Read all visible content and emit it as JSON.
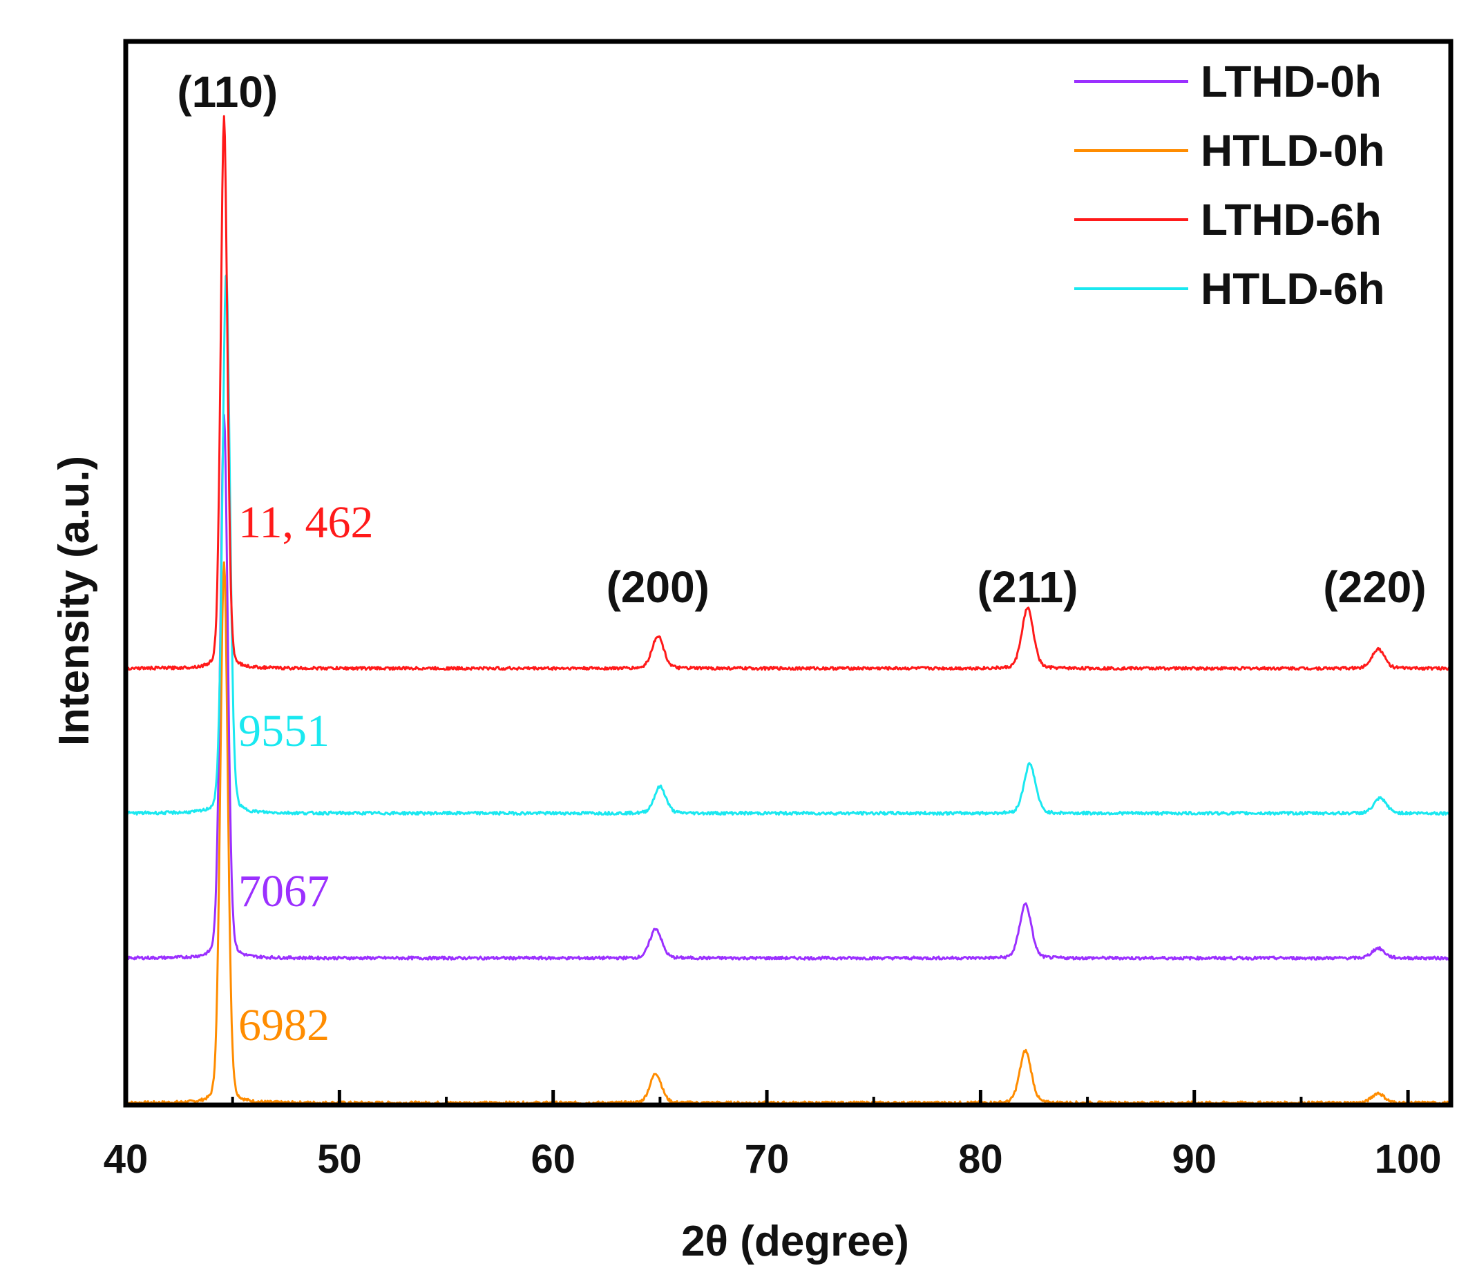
{
  "chart_data": {
    "type": "line",
    "title": "",
    "xlabel": "2θ (degree)",
    "ylabel": "Intensity (a.u.)",
    "xlim": [
      40,
      102
    ],
    "ylim": [
      0,
      10
    ],
    "x_ticks": [
      40,
      50,
      60,
      70,
      80,
      90,
      100
    ],
    "x_tick_labels": [
      "40",
      "50",
      "60",
      "70",
      "80",
      "90",
      "100"
    ],
    "legend_position": "top-right",
    "legend": [
      "LTHD-0h",
      "HTLD-0h",
      "LTHD-6h",
      "HTLD-6h"
    ],
    "peak_positions": [
      44.6,
      64.9,
      82.2,
      98.6
    ],
    "peak_labels": [
      "(110)",
      "(200)",
      "(211)",
      "(220)"
    ],
    "series": [
      {
        "name": "LTHD-0h",
        "color": "#9b30ff",
        "baseline": 1.47,
        "peaks": [
          {
            "x": 44.6,
            "height": 5.5,
            "width": 0.18
          },
          {
            "x": 64.8,
            "height": 0.3,
            "width": 0.28
          },
          {
            "x": 82.1,
            "height": 0.55,
            "width": 0.28
          },
          {
            "x": 98.6,
            "height": 0.1,
            "width": 0.3
          }
        ],
        "intensity_label": "7067"
      },
      {
        "name": "HTLD-0h",
        "color": "#ff8c00",
        "baseline": 0.0,
        "peaks": [
          {
            "x": 44.6,
            "height": 5.5,
            "width": 0.18
          },
          {
            "x": 64.8,
            "height": 0.3,
            "width": 0.28
          },
          {
            "x": 82.1,
            "height": 0.53,
            "width": 0.28
          },
          {
            "x": 98.6,
            "height": 0.1,
            "width": 0.3
          }
        ],
        "intensity_label": "6982"
      },
      {
        "name": "LTHD-6h",
        "color": "#ff1a1a",
        "baseline": 4.41,
        "peaks": [
          {
            "x": 44.6,
            "height": 5.59,
            "width": 0.16
          },
          {
            "x": 64.9,
            "height": 0.33,
            "width": 0.28
          },
          {
            "x": 82.2,
            "height": 0.61,
            "width": 0.28
          },
          {
            "x": 98.6,
            "height": 0.2,
            "width": 0.3
          }
        ],
        "intensity_label": "11, 462"
      },
      {
        "name": "HTLD-6h",
        "color": "#1ae8f0",
        "baseline": 2.94,
        "peaks": [
          {
            "x": 44.7,
            "height": 5.5,
            "width": 0.18
          },
          {
            "x": 65.0,
            "height": 0.27,
            "width": 0.28
          },
          {
            "x": 82.3,
            "height": 0.5,
            "width": 0.28
          },
          {
            "x": 98.7,
            "height": 0.15,
            "width": 0.3
          }
        ],
        "intensity_label": "9551"
      }
    ]
  }
}
